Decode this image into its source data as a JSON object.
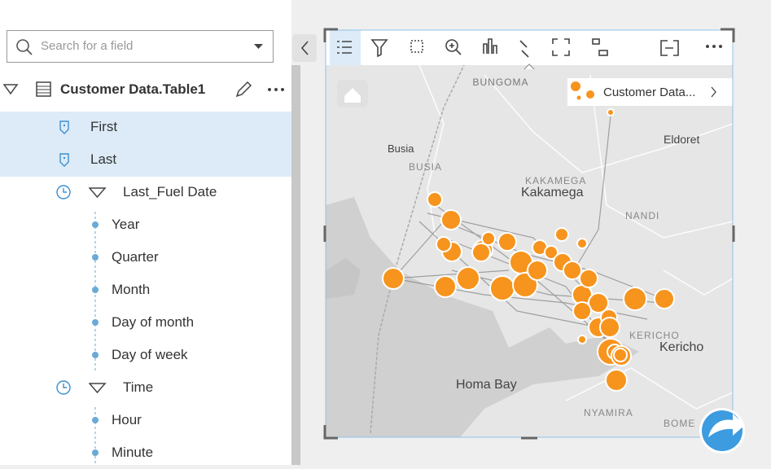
{
  "search": {
    "placeholder": "Search for a field"
  },
  "dataset": {
    "title": "Customer Data.Table1",
    "fields": [
      {
        "label": "First"
      },
      {
        "label": "Last"
      },
      {
        "label": "Last_Fuel Date"
      },
      {
        "label": "Year"
      },
      {
        "label": "Quarter"
      },
      {
        "label": "Month"
      },
      {
        "label": "Day of month"
      },
      {
        "label": "Day of week"
      },
      {
        "label": "Time"
      },
      {
        "label": "Hour"
      },
      {
        "label": "Minute"
      }
    ]
  },
  "map": {
    "legend": "Customer Data...",
    "labels": [
      {
        "text": "BUNGOMA"
      },
      {
        "text": "Eldoret"
      },
      {
        "text": "Busia"
      },
      {
        "text": "BUSIA"
      },
      {
        "text": "KAKAMEGA"
      },
      {
        "text": "Kakamega"
      },
      {
        "text": "NANDI"
      },
      {
        "text": "KERICHO"
      },
      {
        "text": "Kericho"
      },
      {
        "text": "Homa Bay"
      },
      {
        "text": "NYAMIRA"
      },
      {
        "text": "BOME"
      }
    ]
  }
}
